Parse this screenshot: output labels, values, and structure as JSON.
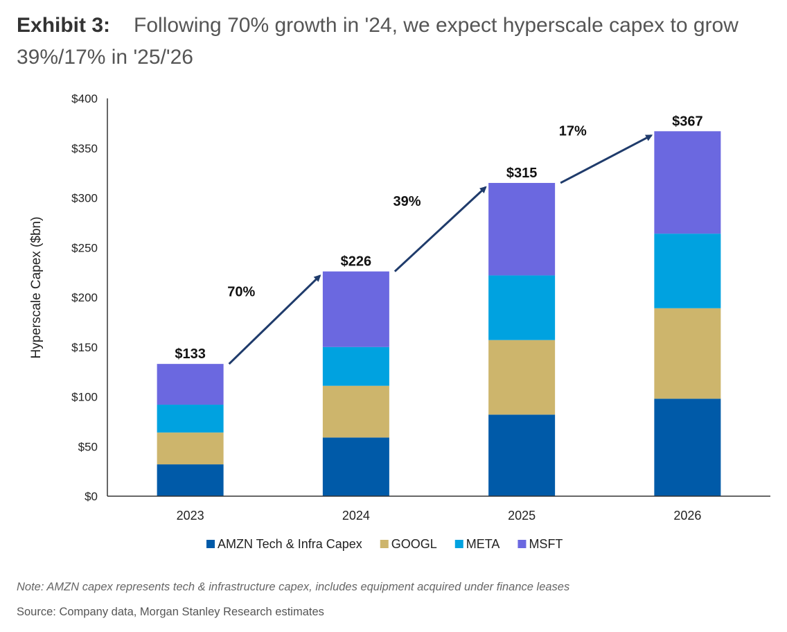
{
  "header": {
    "exhibit": "Exhibit 3:",
    "title": "Following 70% growth in '24, we expect hyperscale capex to grow 39%/17% in '25/'26"
  },
  "chart_data": {
    "type": "bar",
    "stacked": true,
    "categories": [
      "2023",
      "2024",
      "2025",
      "2026"
    ],
    "series": [
      {
        "name": "AMZN Tech & Infra Capex",
        "color": "#005aa8",
        "values": [
          32,
          59,
          82,
          98
        ]
      },
      {
        "name": "GOOGL",
        "color": "#cdb56c",
        "values": [
          32,
          52,
          75,
          91
        ]
      },
      {
        "name": "META",
        "color": "#00a2e0",
        "values": [
          28,
          39,
          65,
          75
        ]
      },
      {
        "name": "MSFT",
        "color": "#6b68e0",
        "values": [
          41,
          76,
          93,
          103
        ]
      }
    ],
    "totals": [
      133,
      226,
      315,
      367
    ],
    "total_labels": [
      "$133",
      "$226",
      "$315",
      "$367"
    ],
    "growth_labels": [
      "70%",
      "39%",
      "17%"
    ],
    "ylabel": "Hyperscale Capex ($bn)",
    "xlabel": "",
    "ylim": [
      0,
      400
    ],
    "yticks": [
      0,
      50,
      100,
      150,
      200,
      250,
      300,
      350,
      400
    ],
    "ytick_labels": [
      "$0",
      "$50",
      "$100",
      "$150",
      "$200",
      "$250",
      "$300",
      "$350",
      "$400"
    ],
    "legend_position": "bottom",
    "grid": false,
    "arrow_color": "#1f3b6b"
  },
  "footer": {
    "note": "Note: AMZN capex represents tech & infrastructure capex, includes equipment acquired under finance leases",
    "source": "Source: Company data, Morgan Stanley Research estimates"
  }
}
